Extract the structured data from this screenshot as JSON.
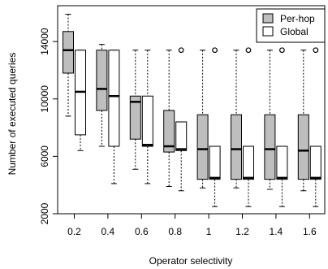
{
  "chart_data": {
    "type": "boxplot",
    "xlabel": "Operator selectivity",
    "ylabel": "Number of executed queries",
    "categories": [
      "0.2",
      "0.4",
      "0.6",
      "0.8",
      "1",
      "1.2",
      "1.4",
      "1.6"
    ],
    "y_ticks": [
      2000,
      6000,
      10000,
      14000
    ],
    "ylim": [
      2000,
      16500
    ],
    "legend_position": "top-right",
    "series": [
      {
        "name": "Per-hop",
        "color": "#bebebe",
        "boxes": [
          {
            "whisker_low": 8800,
            "q1": 11800,
            "median": 13400,
            "q3": 14700,
            "whisker_high": 15900,
            "outliers": []
          },
          {
            "whisker_low": 6700,
            "q1": 9200,
            "median": 10700,
            "q3": 13400,
            "whisker_high": 13800,
            "outliers": []
          },
          {
            "whisker_low": 5100,
            "q1": 7200,
            "median": 9800,
            "q3": 10200,
            "whisker_high": 13400,
            "outliers": []
          },
          {
            "whisker_low": 3900,
            "q1": 6300,
            "median": 6700,
            "q3": 9200,
            "whisker_high": 13400,
            "outliers": []
          },
          {
            "whisker_low": 3800,
            "q1": 4400,
            "median": 6500,
            "q3": 8900,
            "whisker_high": 13400,
            "outliers": []
          },
          {
            "whisker_low": 3800,
            "q1": 4400,
            "median": 6500,
            "q3": 8900,
            "whisker_high": 13400,
            "outliers": []
          },
          {
            "whisker_low": 3700,
            "q1": 4400,
            "median": 6500,
            "q3": 8900,
            "whisker_high": 13400,
            "outliers": []
          },
          {
            "whisker_low": 3600,
            "q1": 4400,
            "median": 6400,
            "q3": 8900,
            "whisker_high": 13400,
            "outliers": []
          }
        ]
      },
      {
        "name": "Global",
        "color": "#ffffff",
        "boxes": [
          {
            "whisker_low": 6400,
            "q1": 7500,
            "median": 10500,
            "q3": 13400,
            "whisker_high": 13400,
            "outliers": []
          },
          {
            "whisker_low": 4100,
            "q1": 6700,
            "median": 10200,
            "q3": 13400,
            "whisker_high": 13400,
            "outliers": []
          },
          {
            "whisker_low": 4100,
            "q1": 6700,
            "median": 6800,
            "q3": 10200,
            "whisker_high": 13400,
            "outliers": []
          },
          {
            "whisker_low": 3600,
            "q1": 6400,
            "median": 6500,
            "q3": 8400,
            "whisker_high": 8400,
            "outliers": [
              13400
            ]
          },
          {
            "whisker_low": 2500,
            "q1": 4400,
            "median": 4500,
            "q3": 6700,
            "whisker_high": 6700,
            "outliers": [
              13400
            ]
          },
          {
            "whisker_low": 2500,
            "q1": 4400,
            "median": 4500,
            "q3": 6700,
            "whisker_high": 6700,
            "outliers": [
              13400
            ]
          },
          {
            "whisker_low": 2500,
            "q1": 4400,
            "median": 4500,
            "q3": 6700,
            "whisker_high": 6700,
            "outliers": [
              13400
            ]
          },
          {
            "whisker_low": 2500,
            "q1": 4400,
            "median": 4500,
            "q3": 6700,
            "whisker_high": 6700,
            "outliers": [
              13400
            ]
          }
        ]
      }
    ]
  }
}
